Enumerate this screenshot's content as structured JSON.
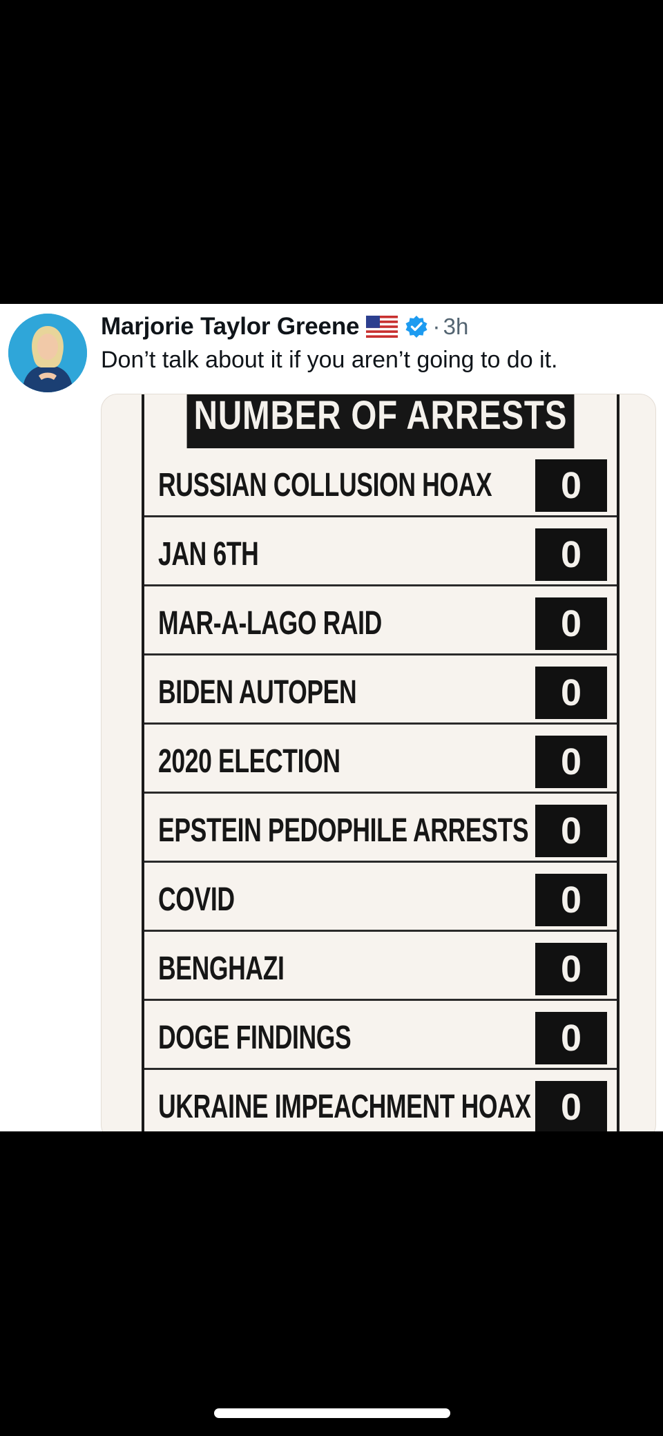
{
  "tweet": {
    "author": "Marjorie Taylor Greene",
    "separator": "·",
    "time": "3h",
    "text": "Don’t talk about it if you aren’t going to do it.",
    "avatar_icon": "profile-photo",
    "flag_icon": "us-flag-icon",
    "verified_icon": "verified-badge-icon",
    "colors": {
      "verified": "#1d9bf0",
      "secondary_text": "#536471",
      "primary_text": "#0f1419"
    }
  },
  "image": {
    "title": "NUMBER OF ARRESTS",
    "rows": [
      {
        "label": "RUSSIAN COLLUSION HOAX",
        "count": "0"
      },
      {
        "label": "JAN 6TH",
        "count": "0"
      },
      {
        "label": "MAR-A-LAGO RAID",
        "count": "0"
      },
      {
        "label": "BIDEN AUTOPEN",
        "count": "0"
      },
      {
        "label": "2020 ELECTION",
        "count": "0"
      },
      {
        "label": "EPSTEIN PEDOPHILE ARRESTS",
        "count": "0"
      },
      {
        "label": "COVID",
        "count": "0"
      },
      {
        "label": "BENGHAZI",
        "count": "0"
      },
      {
        "label": "DOGE FINDINGS",
        "count": "0"
      },
      {
        "label": "UKRAINE IMPEACHMENT HOAX",
        "count": "0"
      }
    ]
  }
}
